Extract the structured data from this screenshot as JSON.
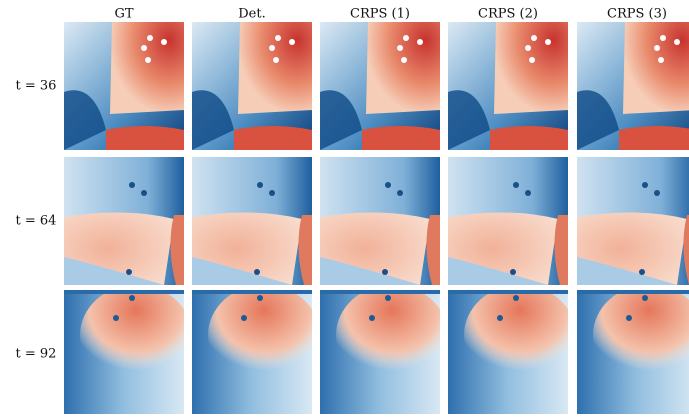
{
  "figure": {
    "column_headers": [
      "GT",
      "Det.",
      "CRPS (1)",
      "CRPS (2)",
      "CRPS (3)"
    ],
    "row_labels": [
      "t = 36",
      "t = 64",
      "t = 92"
    ]
  }
}
